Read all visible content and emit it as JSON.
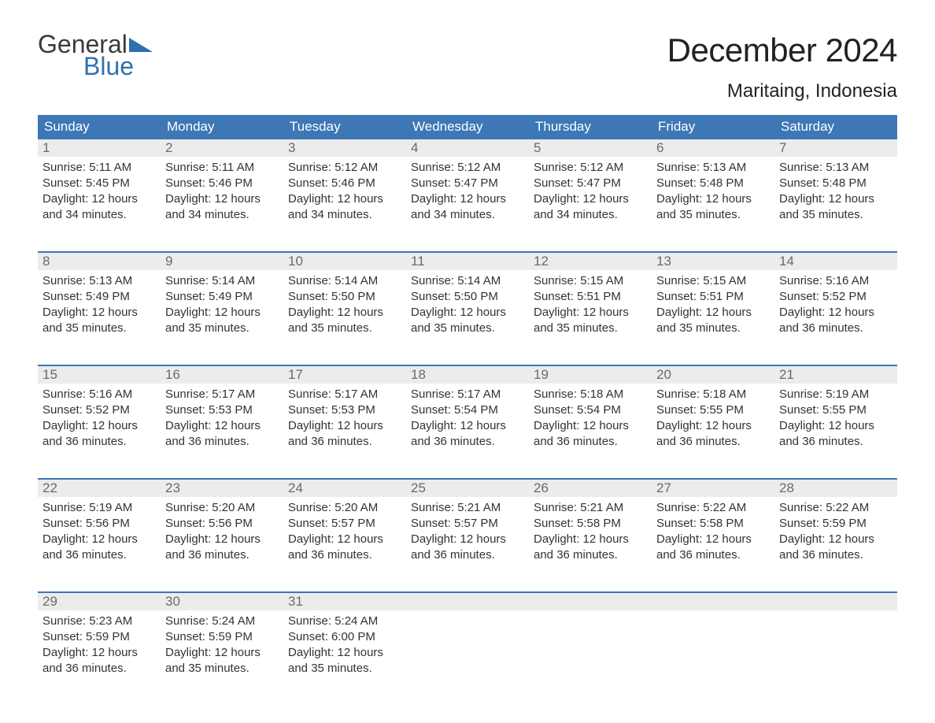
{
  "logo": {
    "word1": "General",
    "word2": "Blue"
  },
  "title": "December 2024",
  "location": "Maritaing, Indonesia",
  "header_bg": "#3d77b6",
  "daynum_bg": "#ececec",
  "day_names": [
    "Sunday",
    "Monday",
    "Tuesday",
    "Wednesday",
    "Thursday",
    "Friday",
    "Saturday"
  ],
  "weeks": [
    [
      {
        "n": "1",
        "sunrise": "Sunrise: 5:11 AM",
        "sunset": "Sunset: 5:45 PM",
        "d1": "Daylight: 12 hours",
        "d2": "and 34 minutes."
      },
      {
        "n": "2",
        "sunrise": "Sunrise: 5:11 AM",
        "sunset": "Sunset: 5:46 PM",
        "d1": "Daylight: 12 hours",
        "d2": "and 34 minutes."
      },
      {
        "n": "3",
        "sunrise": "Sunrise: 5:12 AM",
        "sunset": "Sunset: 5:46 PM",
        "d1": "Daylight: 12 hours",
        "d2": "and 34 minutes."
      },
      {
        "n": "4",
        "sunrise": "Sunrise: 5:12 AM",
        "sunset": "Sunset: 5:47 PM",
        "d1": "Daylight: 12 hours",
        "d2": "and 34 minutes."
      },
      {
        "n": "5",
        "sunrise": "Sunrise: 5:12 AM",
        "sunset": "Sunset: 5:47 PM",
        "d1": "Daylight: 12 hours",
        "d2": "and 34 minutes."
      },
      {
        "n": "6",
        "sunrise": "Sunrise: 5:13 AM",
        "sunset": "Sunset: 5:48 PM",
        "d1": "Daylight: 12 hours",
        "d2": "and 35 minutes."
      },
      {
        "n": "7",
        "sunrise": "Sunrise: 5:13 AM",
        "sunset": "Sunset: 5:48 PM",
        "d1": "Daylight: 12 hours",
        "d2": "and 35 minutes."
      }
    ],
    [
      {
        "n": "8",
        "sunrise": "Sunrise: 5:13 AM",
        "sunset": "Sunset: 5:49 PM",
        "d1": "Daylight: 12 hours",
        "d2": "and 35 minutes."
      },
      {
        "n": "9",
        "sunrise": "Sunrise: 5:14 AM",
        "sunset": "Sunset: 5:49 PM",
        "d1": "Daylight: 12 hours",
        "d2": "and 35 minutes."
      },
      {
        "n": "10",
        "sunrise": "Sunrise: 5:14 AM",
        "sunset": "Sunset: 5:50 PM",
        "d1": "Daylight: 12 hours",
        "d2": "and 35 minutes."
      },
      {
        "n": "11",
        "sunrise": "Sunrise: 5:14 AM",
        "sunset": "Sunset: 5:50 PM",
        "d1": "Daylight: 12 hours",
        "d2": "and 35 minutes."
      },
      {
        "n": "12",
        "sunrise": "Sunrise: 5:15 AM",
        "sunset": "Sunset: 5:51 PM",
        "d1": "Daylight: 12 hours",
        "d2": "and 35 minutes."
      },
      {
        "n": "13",
        "sunrise": "Sunrise: 5:15 AM",
        "sunset": "Sunset: 5:51 PM",
        "d1": "Daylight: 12 hours",
        "d2": "and 35 minutes."
      },
      {
        "n": "14",
        "sunrise": "Sunrise: 5:16 AM",
        "sunset": "Sunset: 5:52 PM",
        "d1": "Daylight: 12 hours",
        "d2": "and 36 minutes."
      }
    ],
    [
      {
        "n": "15",
        "sunrise": "Sunrise: 5:16 AM",
        "sunset": "Sunset: 5:52 PM",
        "d1": "Daylight: 12 hours",
        "d2": "and 36 minutes."
      },
      {
        "n": "16",
        "sunrise": "Sunrise: 5:17 AM",
        "sunset": "Sunset: 5:53 PM",
        "d1": "Daylight: 12 hours",
        "d2": "and 36 minutes."
      },
      {
        "n": "17",
        "sunrise": "Sunrise: 5:17 AM",
        "sunset": "Sunset: 5:53 PM",
        "d1": "Daylight: 12 hours",
        "d2": "and 36 minutes."
      },
      {
        "n": "18",
        "sunrise": "Sunrise: 5:17 AM",
        "sunset": "Sunset: 5:54 PM",
        "d1": "Daylight: 12 hours",
        "d2": "and 36 minutes."
      },
      {
        "n": "19",
        "sunrise": "Sunrise: 5:18 AM",
        "sunset": "Sunset: 5:54 PM",
        "d1": "Daylight: 12 hours",
        "d2": "and 36 minutes."
      },
      {
        "n": "20",
        "sunrise": "Sunrise: 5:18 AM",
        "sunset": "Sunset: 5:55 PM",
        "d1": "Daylight: 12 hours",
        "d2": "and 36 minutes."
      },
      {
        "n": "21",
        "sunrise": "Sunrise: 5:19 AM",
        "sunset": "Sunset: 5:55 PM",
        "d1": "Daylight: 12 hours",
        "d2": "and 36 minutes."
      }
    ],
    [
      {
        "n": "22",
        "sunrise": "Sunrise: 5:19 AM",
        "sunset": "Sunset: 5:56 PM",
        "d1": "Daylight: 12 hours",
        "d2": "and 36 minutes."
      },
      {
        "n": "23",
        "sunrise": "Sunrise: 5:20 AM",
        "sunset": "Sunset: 5:56 PM",
        "d1": "Daylight: 12 hours",
        "d2": "and 36 minutes."
      },
      {
        "n": "24",
        "sunrise": "Sunrise: 5:20 AM",
        "sunset": "Sunset: 5:57 PM",
        "d1": "Daylight: 12 hours",
        "d2": "and 36 minutes."
      },
      {
        "n": "25",
        "sunrise": "Sunrise: 5:21 AM",
        "sunset": "Sunset: 5:57 PM",
        "d1": "Daylight: 12 hours",
        "d2": "and 36 minutes."
      },
      {
        "n": "26",
        "sunrise": "Sunrise: 5:21 AM",
        "sunset": "Sunset: 5:58 PM",
        "d1": "Daylight: 12 hours",
        "d2": "and 36 minutes."
      },
      {
        "n": "27",
        "sunrise": "Sunrise: 5:22 AM",
        "sunset": "Sunset: 5:58 PM",
        "d1": "Daylight: 12 hours",
        "d2": "and 36 minutes."
      },
      {
        "n": "28",
        "sunrise": "Sunrise: 5:22 AM",
        "sunset": "Sunset: 5:59 PM",
        "d1": "Daylight: 12 hours",
        "d2": "and 36 minutes."
      }
    ],
    [
      {
        "n": "29",
        "sunrise": "Sunrise: 5:23 AM",
        "sunset": "Sunset: 5:59 PM",
        "d1": "Daylight: 12 hours",
        "d2": "and 36 minutes."
      },
      {
        "n": "30",
        "sunrise": "Sunrise: 5:24 AM",
        "sunset": "Sunset: 5:59 PM",
        "d1": "Daylight: 12 hours",
        "d2": "and 35 minutes."
      },
      {
        "n": "31",
        "sunrise": "Sunrise: 5:24 AM",
        "sunset": "Sunset: 6:00 PM",
        "d1": "Daylight: 12 hours",
        "d2": "and 35 minutes."
      },
      {
        "empty": true
      },
      {
        "empty": true
      },
      {
        "empty": true
      },
      {
        "empty": true
      }
    ]
  ]
}
